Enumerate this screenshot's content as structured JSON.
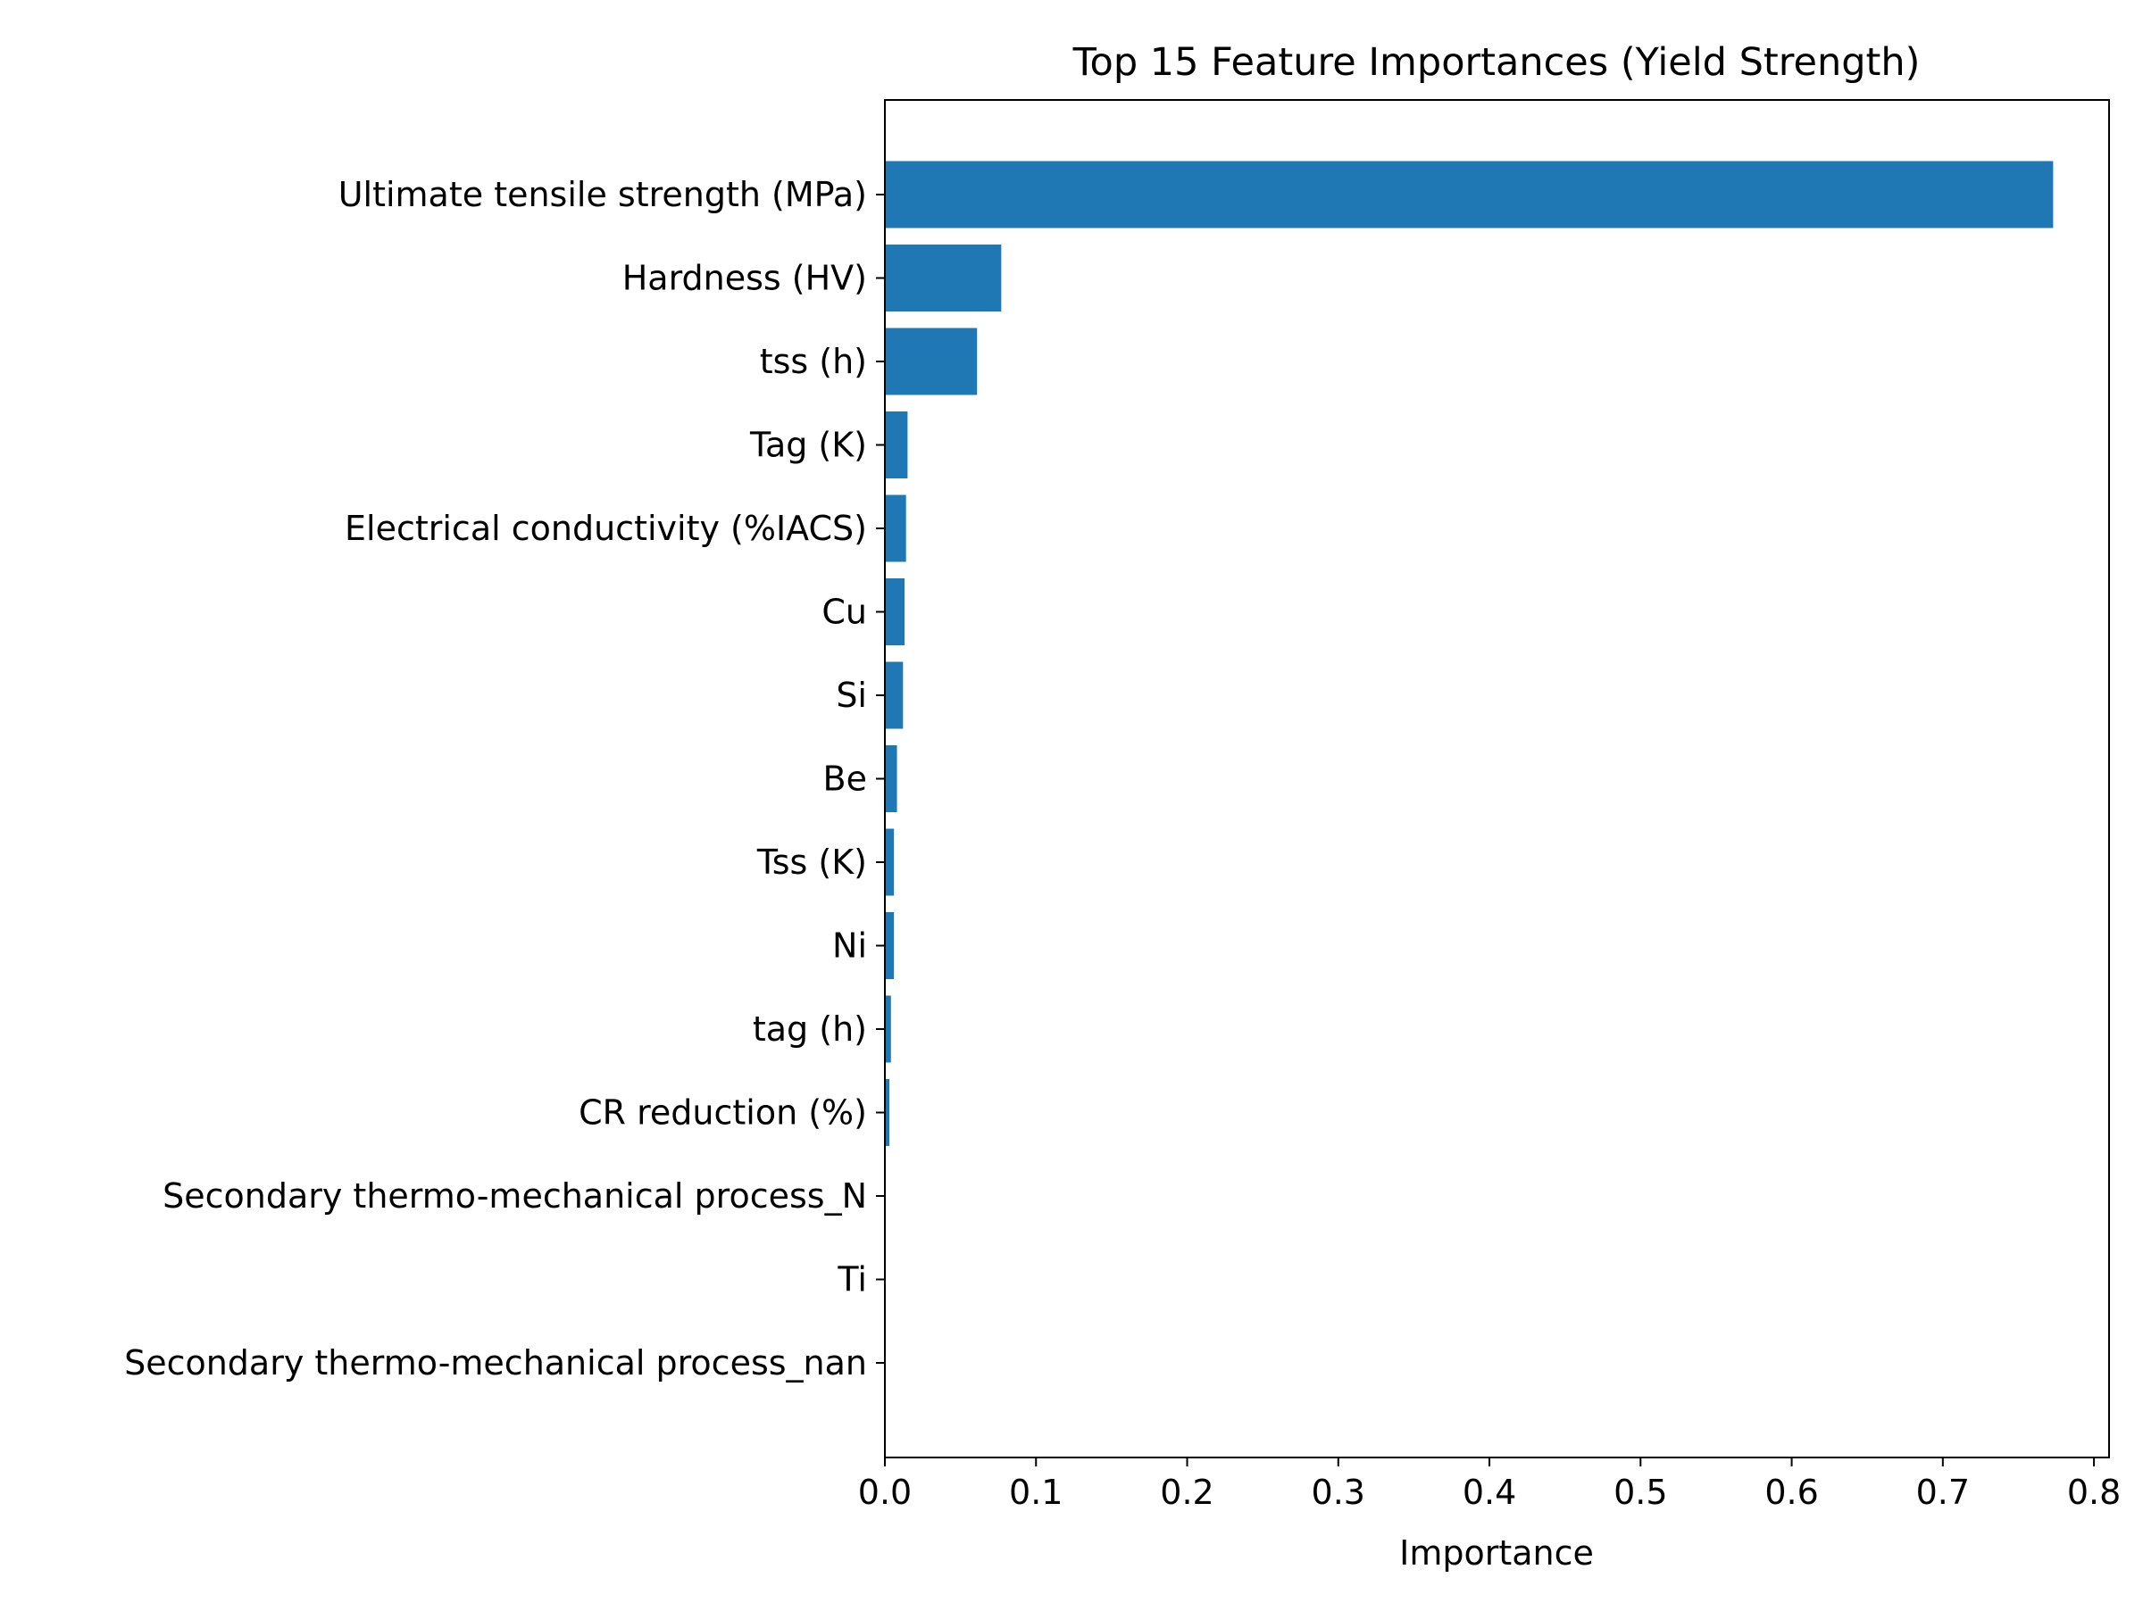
{
  "chart_data": {
    "type": "bar",
    "orientation": "horizontal",
    "title": "Top 15 Feature Importances (Yield Strength)",
    "xlabel": "Importance",
    "ylabel": "",
    "xlim": [
      0,
      0.81
    ],
    "xticks": [
      "0.0",
      "0.1",
      "0.2",
      "0.3",
      "0.4",
      "0.5",
      "0.6",
      "0.7",
      "0.8"
    ],
    "grid": false,
    "bar_color": "#1f77b4",
    "categories": [
      "Ultimate tensile strength (MPa)",
      "Hardness (HV)",
      "tss (h)",
      "Tag (K)",
      "Electrical conductivity (%IACS)",
      "Cu",
      "Si",
      "Be",
      "Tss (K)",
      "Ni",
      "tag (h)",
      "CR reduction (%)",
      "Secondary thermo-mechanical process_N",
      "Ti",
      "Secondary thermo-mechanical process_nan"
    ],
    "values": [
      0.773,
      0.077,
      0.061,
      0.015,
      0.014,
      0.013,
      0.012,
      0.008,
      0.006,
      0.006,
      0.004,
      0.003,
      0.0005,
      0.0003,
      0.0002
    ]
  }
}
